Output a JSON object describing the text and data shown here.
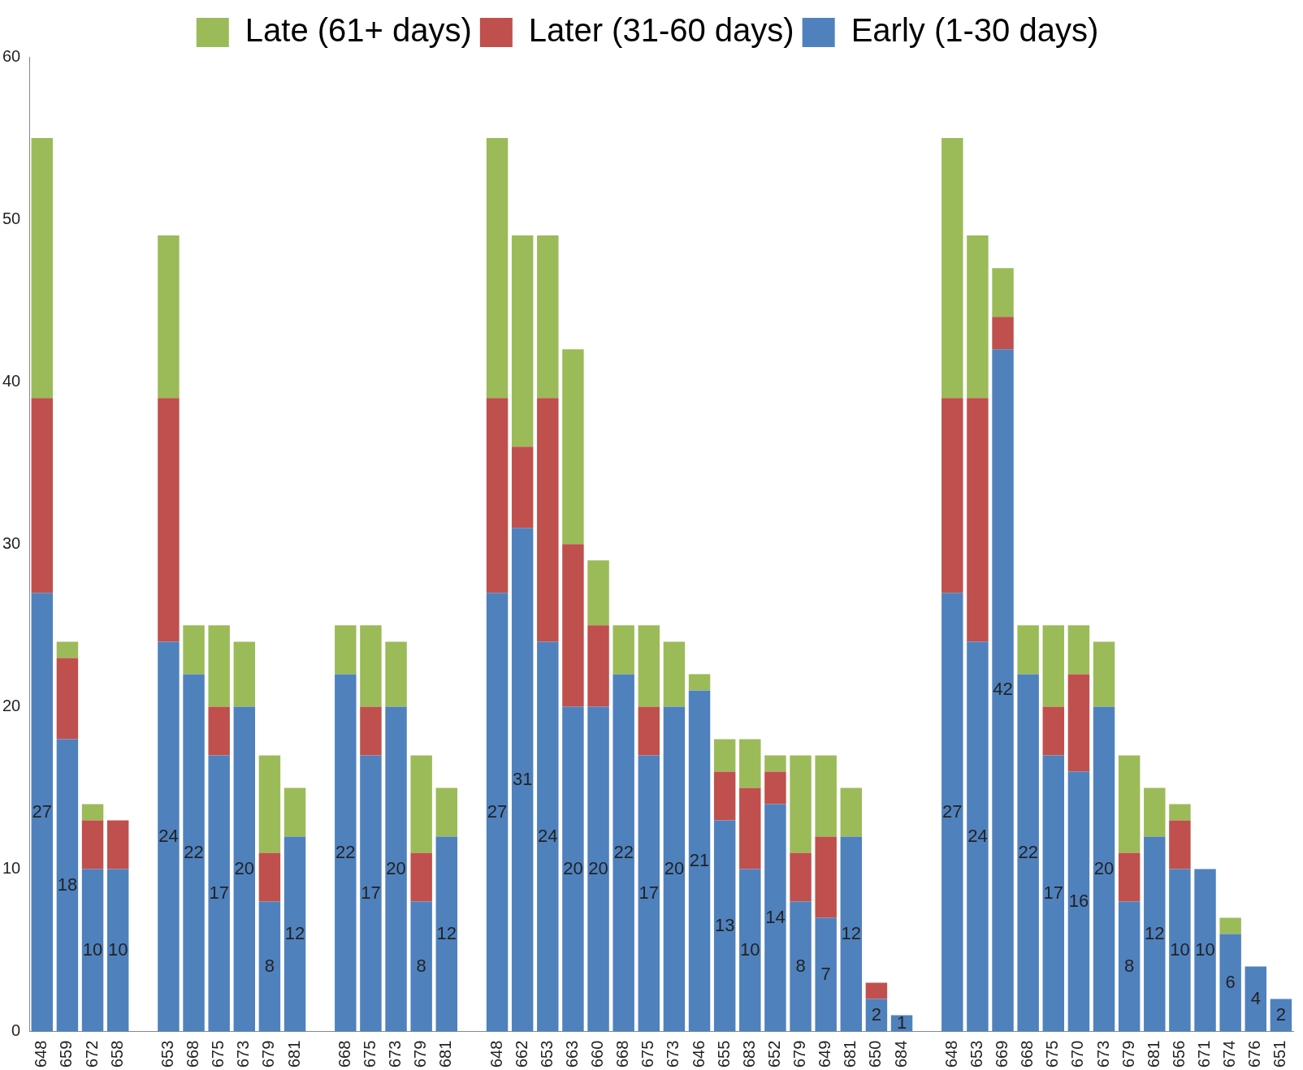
{
  "chart_data": {
    "type": "bar",
    "stacked": true,
    "legend": "top",
    "grid": false,
    "ylim": [
      0,
      60
    ],
    "yticks": [
      0,
      10,
      20,
      30,
      40,
      50,
      60
    ],
    "categories": [
      "648",
      "659",
      "672",
      "658",
      null,
      "653",
      "668",
      "675",
      "673",
      "679",
      "681",
      null,
      "668",
      "675",
      "673",
      "679",
      "681",
      null,
      "648",
      "662",
      "653",
      "663",
      "660",
      "668",
      "675",
      "673",
      "646",
      "655",
      "683",
      "652",
      "679",
      "649",
      "681",
      "650",
      "684",
      null,
      "648",
      "653",
      "669",
      "668",
      "675",
      "670",
      "673",
      "679",
      "681",
      "656",
      "671",
      "674",
      "676",
      "651"
    ],
    "series": [
      {
        "name": "Early (1-30 days)",
        "color": "#4f81bd",
        "values": [
          27,
          18,
          10,
          10,
          null,
          24,
          22,
          17,
          20,
          8,
          12,
          null,
          22,
          17,
          20,
          8,
          12,
          null,
          27,
          31,
          24,
          20,
          20,
          22,
          17,
          20,
          21,
          13,
          10,
          14,
          8,
          7,
          12,
          2,
          1,
          null,
          27,
          24,
          42,
          22,
          17,
          16,
          20,
          8,
          12,
          10,
          10,
          6,
          4,
          2
        ],
        "value_labels": [
          "27",
          "18",
          "10",
          "10",
          null,
          "24",
          "22",
          "17",
          "20",
          "8",
          "12",
          null,
          "22",
          "17",
          "20",
          "8",
          "12",
          null,
          "27",
          "31",
          "24",
          "20",
          "20",
          "22",
          "17",
          "20",
          "21",
          "13",
          "10",
          "14",
          "8",
          "7",
          "12",
          "2",
          "1",
          null,
          "27",
          "24",
          "42",
          "22",
          "17",
          "16",
          "20",
          "8",
          "12",
          "10",
          "10",
          "6",
          "4",
          "2"
        ]
      },
      {
        "name": "Later (31-60 days)",
        "color": "#c0504d",
        "values": [
          12,
          5,
          3,
          3,
          null,
          15,
          0,
          3,
          0,
          3,
          0,
          null,
          0,
          3,
          0,
          3,
          0,
          null,
          12,
          5,
          15,
          10,
          5,
          0,
          3,
          0,
          0,
          3,
          5,
          2,
          3,
          5,
          0,
          1,
          0,
          null,
          12,
          15,
          2,
          0,
          3,
          6,
          0,
          3,
          0,
          3,
          0,
          0,
          0,
          0
        ]
      },
      {
        "name": "Late (61+ days)",
        "color": "#9bbb59",
        "values": [
          16,
          1,
          1,
          0,
          null,
          10,
          3,
          5,
          4,
          6,
          3,
          null,
          3,
          5,
          4,
          6,
          3,
          null,
          16,
          13,
          10,
          12,
          4,
          3,
          5,
          4,
          1,
          2,
          3,
          1,
          6,
          5,
          3,
          0,
          0,
          null,
          16,
          10,
          3,
          3,
          5,
          3,
          4,
          6,
          3,
          1,
          0,
          1,
          0,
          0
        ]
      }
    ]
  }
}
